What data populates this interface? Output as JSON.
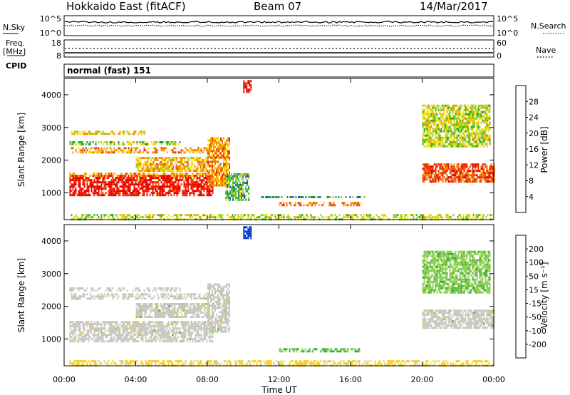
{
  "header": {
    "title": "Hokkaido East (fitACF)",
    "beam": "Beam 07",
    "date": "14/Mar/2017"
  },
  "side_labels": {
    "nsky": "N.Sky",
    "nsearch": "N.Search",
    "freq": "Freq.",
    "freq_unit": "[MHz]",
    "nave": "Nave",
    "cpid": "CPID"
  },
  "strip_ticks": {
    "noise_left": [
      "10^5",
      "10^0"
    ],
    "noise_right": [
      "10^5",
      "10^0"
    ],
    "freq_left": [
      "18",
      "8"
    ],
    "nave_right": [
      "60",
      "0"
    ]
  },
  "cpid_text": "normal (fast) 151",
  "colors": {
    "power_scale": [
      "#0000ff",
      "#1f4fb0",
      "#2a7f6a",
      "#27b427",
      "#9acd32",
      "#f2e600",
      "#f7b500",
      "#f58a00",
      "#f25a00",
      "#f22a00",
      "#e60000"
    ],
    "velocity_scale": [
      "#0033cc",
      "#2255aa",
      "#1f7f5f",
      "#3fae3f",
      "#8fd04f",
      "#c8c8c0",
      "#f3d020",
      "#f5a000",
      "#f26a00",
      "#ee2a00"
    ],
    "ground_scatter": "#c8c8c0"
  },
  "chart_data": [
    {
      "type": "heatmap",
      "panel": "power",
      "ylabel": "Slant Range [km]",
      "colorbar_label": "Power [dB]",
      "colorbar_ticks": [
        "4",
        "8",
        "12",
        "16",
        "20",
        "24",
        "28"
      ],
      "ylim": [
        180,
        4500
      ],
      "y_ticks": [
        "1000",
        "2000",
        "3000",
        "4000"
      ],
      "x_range_hours": [
        0,
        24
      ],
      "regions": [
        {
          "t0": 0.3,
          "t1": 8.3,
          "r0": 900,
          "r1": 1550,
          "power": 28
        },
        {
          "t0": 0.3,
          "t1": 8.3,
          "r0": 1500,
          "r1": 1620,
          "power": 20
        },
        {
          "t0": 0.3,
          "t1": 8.0,
          "r0": 2250,
          "r1": 2400,
          "power": 20
        },
        {
          "t0": 0.3,
          "t1": 6.5,
          "r0": 2480,
          "r1": 2580,
          "power": 12
        },
        {
          "t0": 0.3,
          "t1": 4.5,
          "r0": 2780,
          "r1": 2900,
          "power": 16
        },
        {
          "t0": 4.0,
          "t1": 8.0,
          "r0": 1700,
          "r1": 2100,
          "power": 18
        },
        {
          "t0": 8.0,
          "t1": 9.2,
          "r0": 1200,
          "r1": 2700,
          "power": 20
        },
        {
          "t0": 9.0,
          "t1": 10.3,
          "r0": 800,
          "r1": 1600,
          "power": 10
        },
        {
          "t0": 10.0,
          "t1": 10.4,
          "r0": 4100,
          "r1": 4450,
          "power": 28
        },
        {
          "t0": 12.0,
          "t1": 16.5,
          "r0": 620,
          "r1": 720,
          "power": 22
        },
        {
          "t0": 11.0,
          "t1": 16.8,
          "r0": 850,
          "r1": 900,
          "power": 8
        },
        {
          "t0": 0.3,
          "t1": 24.0,
          "r0": 200,
          "r1": 350,
          "power": 14
        },
        {
          "t0": 20.0,
          "t1": 24.0,
          "r0": 1350,
          "r1": 1900,
          "power": 24
        },
        {
          "t0": 20.0,
          "t1": 23.8,
          "r0": 2400,
          "r1": 3700,
          "power": 14
        }
      ]
    },
    {
      "type": "heatmap",
      "panel": "velocity",
      "ylabel": "Slant Range [km]",
      "xlabel": "Time UT",
      "colorbar_label": "Velocity [m s⁻¹]",
      "colorbar_ticks": [
        "-200",
        "-100",
        "-50",
        "-15",
        "15",
        "50",
        "100",
        "200"
      ],
      "ylim": [
        180,
        4500
      ],
      "y_ticks": [
        "1000",
        "2000",
        "3000",
        "4000"
      ],
      "x_ticks": [
        "00:00",
        "04:00",
        "08:00",
        "12:00",
        "16:00",
        "20:00",
        "00:00"
      ],
      "x_range_hours": [
        0,
        24
      ],
      "regions": [
        {
          "t0": 0.3,
          "t1": 8.3,
          "r0": 900,
          "r1": 1550,
          "velocity": 0,
          "ground": true
        },
        {
          "t0": 0.3,
          "t1": 8.0,
          "r0": 2250,
          "r1": 2400,
          "velocity": 0,
          "ground": true
        },
        {
          "t0": 0.3,
          "t1": 6.5,
          "r0": 2480,
          "r1": 2580,
          "velocity": 0,
          "ground": true
        },
        {
          "t0": 4.0,
          "t1": 8.0,
          "r0": 1700,
          "r1": 2100,
          "velocity": 0,
          "ground": true
        },
        {
          "t0": 8.0,
          "t1": 9.2,
          "r0": 1200,
          "r1": 2700,
          "velocity": 0,
          "ground": true
        },
        {
          "t0": 10.0,
          "t1": 10.4,
          "r0": 4100,
          "r1": 4450,
          "velocity": 220
        },
        {
          "t0": 12.0,
          "t1": 16.5,
          "r0": 620,
          "r1": 720,
          "velocity": 50
        },
        {
          "t0": 0.3,
          "t1": 24.0,
          "r0": 200,
          "r1": 350,
          "velocity": -30
        },
        {
          "t0": 20.0,
          "t1": 24.0,
          "r0": 1350,
          "r1": 1900,
          "velocity": 0,
          "ground": true
        },
        {
          "t0": 20.0,
          "t1": 23.8,
          "r0": 2400,
          "r1": 3700,
          "velocity": 40
        }
      ]
    }
  ]
}
